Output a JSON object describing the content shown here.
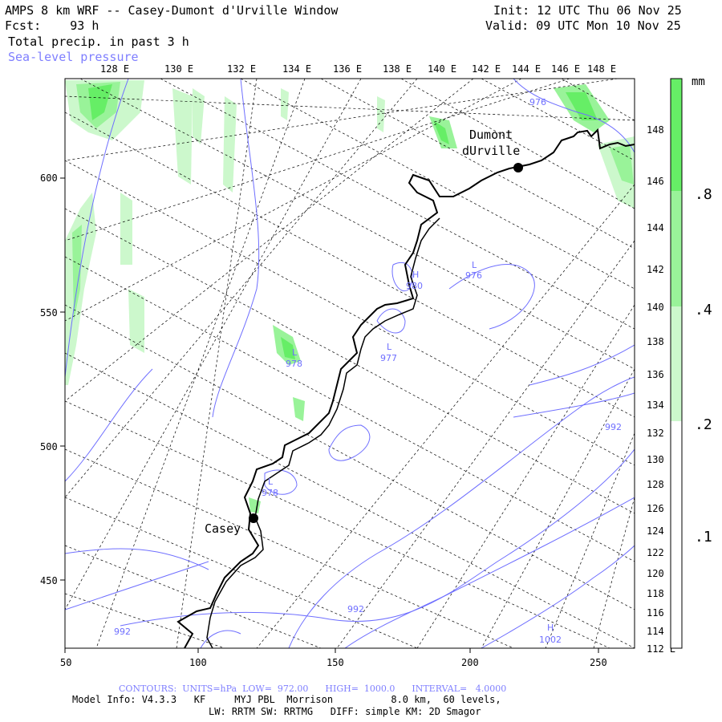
{
  "header": {
    "title": "AMPS 8 km WRF -- Casey-Dumont d'Urville Window",
    "fcst": "Fcst:    93 h",
    "field": "Total precip. in past 3 h",
    "contour_field": "Sea-level pressure",
    "init": "Init: 12 UTC Thu 06 Nov 25",
    "valid": "Valid: 09 UTC Mon 10 Nov 25"
  },
  "map": {
    "top_lon_labels": [
      "128 E",
      "130 E",
      "132 E",
      "134 E",
      "136 E",
      "138 E",
      "140 E",
      "142 E",
      "144 E",
      "146 E",
      "148 E"
    ],
    "right_lon_labels": [
      "148 E",
      "146 E",
      "144 E",
      "142 E",
      "140 E",
      "138 E",
      "136 E",
      "134 E",
      "132 E",
      "130 E",
      "128 E",
      "126 E",
      "124 E",
      "122 E",
      "120 E",
      "118 E",
      "116 E",
      "114 E",
      "112 E"
    ],
    "x_axis": {
      "ticks": [
        "50",
        "100",
        "150",
        "200",
        "250"
      ]
    },
    "y_axis": {
      "ticks": [
        "600",
        "550",
        "500",
        "450"
      ]
    },
    "stations": [
      {
        "name": "Dumont",
        "name2": "dUrville"
      },
      {
        "name": "Casey"
      }
    ],
    "pressure_labels": [
      {
        "type": "L",
        "value": "976",
        "near": "140 E"
      },
      {
        "type": "H",
        "value": "980",
        "near": "coast"
      },
      {
        "type": "L",
        "value": "977",
        "near": "coast"
      },
      {
        "type": "L",
        "value": "978",
        "near": "inland"
      },
      {
        "type": "L",
        "value": "978",
        "near": "Casey"
      },
      {
        "type": "",
        "value": "992",
        "near": "lower-left"
      },
      {
        "type": "",
        "value": "992",
        "near": "bottom-center"
      },
      {
        "type": "H",
        "value": "1002",
        "near": "bottom-right"
      },
      {
        "type": "",
        "value": "992",
        "near": "right"
      },
      {
        "type": "",
        "value": "976",
        "near": "top-right"
      }
    ],
    "colors": {
      "coast": "#000000",
      "contour": "#6f6fff",
      "grid": "#000000",
      "precip_light": "#d8f8d8",
      "precip_mid": "#a8f0a8",
      "precip_strong": "#66e066"
    }
  },
  "colorbar": {
    "unit": "mm",
    "labels": [
      ".8",
      ".4",
      ".2",
      ".1"
    ],
    "colors": [
      "#66ee66",
      "#99f399",
      "#ccf8cc",
      "#ffffff"
    ]
  },
  "footer": {
    "contours": "CONTOURS:  UNITS=hPa  LOW=  972.00      HIGH=  1000.0      INTERVAL=   4.0000",
    "model_line1": "Model Info: V4.3.3   KF     MYJ PBL  Morrison          8.0 km,  60 levels,",
    "model_line2": "LW: RRTM SW: RRTMG   DIFF: simple KM: 2D Smagor"
  }
}
